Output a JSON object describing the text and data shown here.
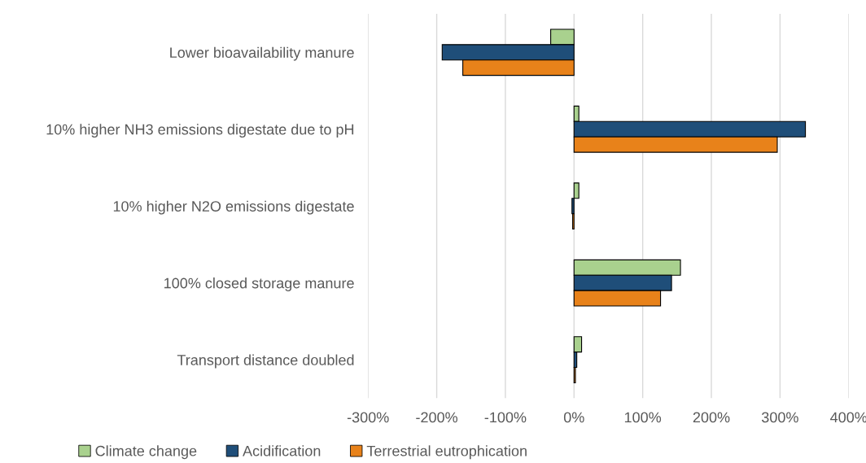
{
  "chart_data": {
    "type": "bar",
    "orientation": "horizontal",
    "categories": [
      "Lower bioavailability manure",
      "10% higher NH3 emissions digestate due to pH",
      "10% higher N2O emissions digestate",
      "100% closed storage manure",
      "Transport distance doubled"
    ],
    "series": [
      {
        "name": "Climate change",
        "color": "#a9d18e",
        "values": [
          -34,
          7,
          7,
          155,
          11
        ]
      },
      {
        "name": "Acidification",
        "color": "#1f4e79",
        "values": [
          -192,
          337,
          -3,
          142,
          4
        ]
      },
      {
        "name": "Terrestrial eutrophication",
        "color": "#e8821a",
        "values": [
          -162,
          296,
          -2,
          126,
          2
        ]
      }
    ],
    "xlim": [
      -300,
      400
    ],
    "xticks": [
      {
        "value": -300,
        "label": "-300%"
      },
      {
        "value": -200,
        "label": "-200%"
      },
      {
        "value": -100,
        "label": "-100%"
      },
      {
        "value": 0,
        "label": "0%"
      },
      {
        "value": 100,
        "label": "100%"
      },
      {
        "value": 200,
        "label": "200%"
      },
      {
        "value": 300,
        "label": "300%"
      },
      {
        "value": 400,
        "label": "400%"
      }
    ],
    "grid": "x",
    "legend": "bottom"
  }
}
